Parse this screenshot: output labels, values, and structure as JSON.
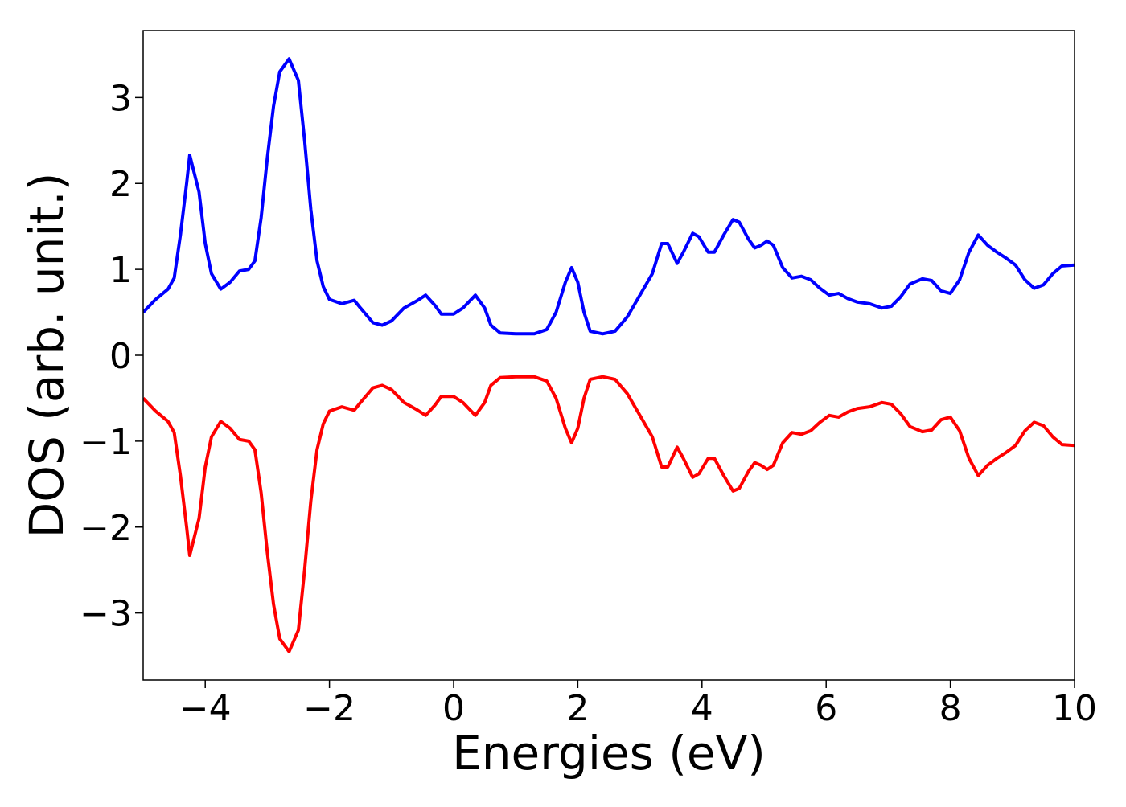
{
  "chart_data": {
    "type": "line",
    "x_label": "Energies (eV)",
    "y_label": "DOS (arb. unit.)",
    "x": [
      -5,
      -4.8,
      -4.6,
      -4.5,
      -4.4,
      -4.3,
      -4.25,
      -4.1,
      -4.0,
      -3.9,
      -3.75,
      -3.6,
      -3.45,
      -3.3,
      -3.2,
      -3.1,
      -3.0,
      -2.9,
      -2.8,
      -2.65,
      -2.5,
      -2.4,
      -2.3,
      -2.2,
      -2.1,
      -2.0,
      -1.8,
      -1.6,
      -1.5,
      -1.3,
      -1.15,
      -1.0,
      -0.8,
      -0.6,
      -0.45,
      -0.3,
      -0.2,
      0,
      0.15,
      0.35,
      0.5,
      0.6,
      0.75,
      1.0,
      1.3,
      1.5,
      1.65,
      1.8,
      1.9,
      2.0,
      2.1,
      2.2,
      2.4,
      2.6,
      2.8,
      3.0,
      3.2,
      3.35,
      3.45,
      3.6,
      3.7,
      3.85,
      3.95,
      4.1,
      4.2,
      4.35,
      4.5,
      4.6,
      4.75,
      4.85,
      4.95,
      5.05,
      5.15,
      5.3,
      5.45,
      5.6,
      5.75,
      5.9,
      6.05,
      6.2,
      6.35,
      6.5,
      6.7,
      6.9,
      7.05,
      7.2,
      7.35,
      7.55,
      7.7,
      7.85,
      8.0,
      8.15,
      8.3,
      8.45,
      8.6,
      8.75,
      8.9,
      9.05,
      9.2,
      9.35,
      9.5,
      9.65,
      9.8,
      10.0
    ],
    "series": [
      {
        "color": "#0000ff",
        "values": [
          0.5,
          0.65,
          0.77,
          0.9,
          1.4,
          2.0,
          2.33,
          1.9,
          1.3,
          0.95,
          0.77,
          0.85,
          0.98,
          1.0,
          1.1,
          1.6,
          2.3,
          2.9,
          3.3,
          3.45,
          3.2,
          2.5,
          1.7,
          1.1,
          0.8,
          0.65,
          0.6,
          0.64,
          0.55,
          0.38,
          0.35,
          0.4,
          0.55,
          0.63,
          0.7,
          0.58,
          0.48,
          0.48,
          0.55,
          0.7,
          0.55,
          0.35,
          0.26,
          0.25,
          0.25,
          0.3,
          0.5,
          0.85,
          1.02,
          0.85,
          0.5,
          0.28,
          0.25,
          0.28,
          0.45,
          0.7,
          0.95,
          1.3,
          1.3,
          1.07,
          1.2,
          1.42,
          1.38,
          1.2,
          1.2,
          1.4,
          1.58,
          1.55,
          1.35,
          1.25,
          1.28,
          1.33,
          1.28,
          1.02,
          0.9,
          0.92,
          0.88,
          0.78,
          0.7,
          0.72,
          0.66,
          0.62,
          0.6,
          0.55,
          0.57,
          0.68,
          0.83,
          0.89,
          0.87,
          0.75,
          0.72,
          0.88,
          1.2,
          1.4,
          1.28,
          1.2,
          1.13,
          1.05,
          0.88,
          0.78,
          0.82,
          0.95,
          1.04,
          1.05
        ]
      },
      {
        "color": "#ff0000",
        "values": [
          -0.5,
          -0.65,
          -0.77,
          -0.9,
          -1.4,
          -2.0,
          -2.33,
          -1.9,
          -1.3,
          -0.95,
          -0.77,
          -0.85,
          -0.98,
          -1.0,
          -1.1,
          -1.6,
          -2.3,
          -2.9,
          -3.3,
          -3.45,
          -3.2,
          -2.5,
          -1.7,
          -1.1,
          -0.8,
          -0.65,
          -0.6,
          -0.64,
          -0.55,
          -0.38,
          -0.35,
          -0.4,
          -0.55,
          -0.63,
          -0.7,
          -0.58,
          -0.48,
          -0.48,
          -0.55,
          -0.7,
          -0.55,
          -0.35,
          -0.26,
          -0.25,
          -0.25,
          -0.3,
          -0.5,
          -0.85,
          -1.02,
          -0.85,
          -0.5,
          -0.28,
          -0.25,
          -0.28,
          -0.45,
          -0.7,
          -0.95,
          -1.3,
          -1.3,
          -1.07,
          -1.2,
          -1.42,
          -1.38,
          -1.2,
          -1.2,
          -1.4,
          -1.58,
          -1.55,
          -1.35,
          -1.25,
          -1.28,
          -1.33,
          -1.28,
          -1.02,
          -0.9,
          -0.92,
          -0.88,
          -0.78,
          -0.7,
          -0.72,
          -0.66,
          -0.62,
          -0.6,
          -0.55,
          -0.57,
          -0.68,
          -0.83,
          -0.89,
          -0.87,
          -0.75,
          -0.72,
          -0.88,
          -1.2,
          -1.4,
          -1.28,
          -1.2,
          -1.13,
          -1.05,
          -0.88,
          -0.78,
          -0.82,
          -0.95,
          -1.04,
          -1.05
        ]
      }
    ],
    "xlim": [
      -5,
      10
    ],
    "ylim": [
      -3.78,
      3.78
    ],
    "xticks": [
      {
        "value": -4,
        "label": "−4"
      },
      {
        "value": -2,
        "label": "−2"
      },
      0,
      2,
      4,
      6,
      8,
      10
    ],
    "yticks": [
      {
        "value": -3,
        "label": "−3"
      },
      {
        "value": -2,
        "label": "−2"
      },
      {
        "value": -1,
        "label": "−1"
      },
      0,
      1,
      2,
      3
    ],
    "grid": false
  }
}
